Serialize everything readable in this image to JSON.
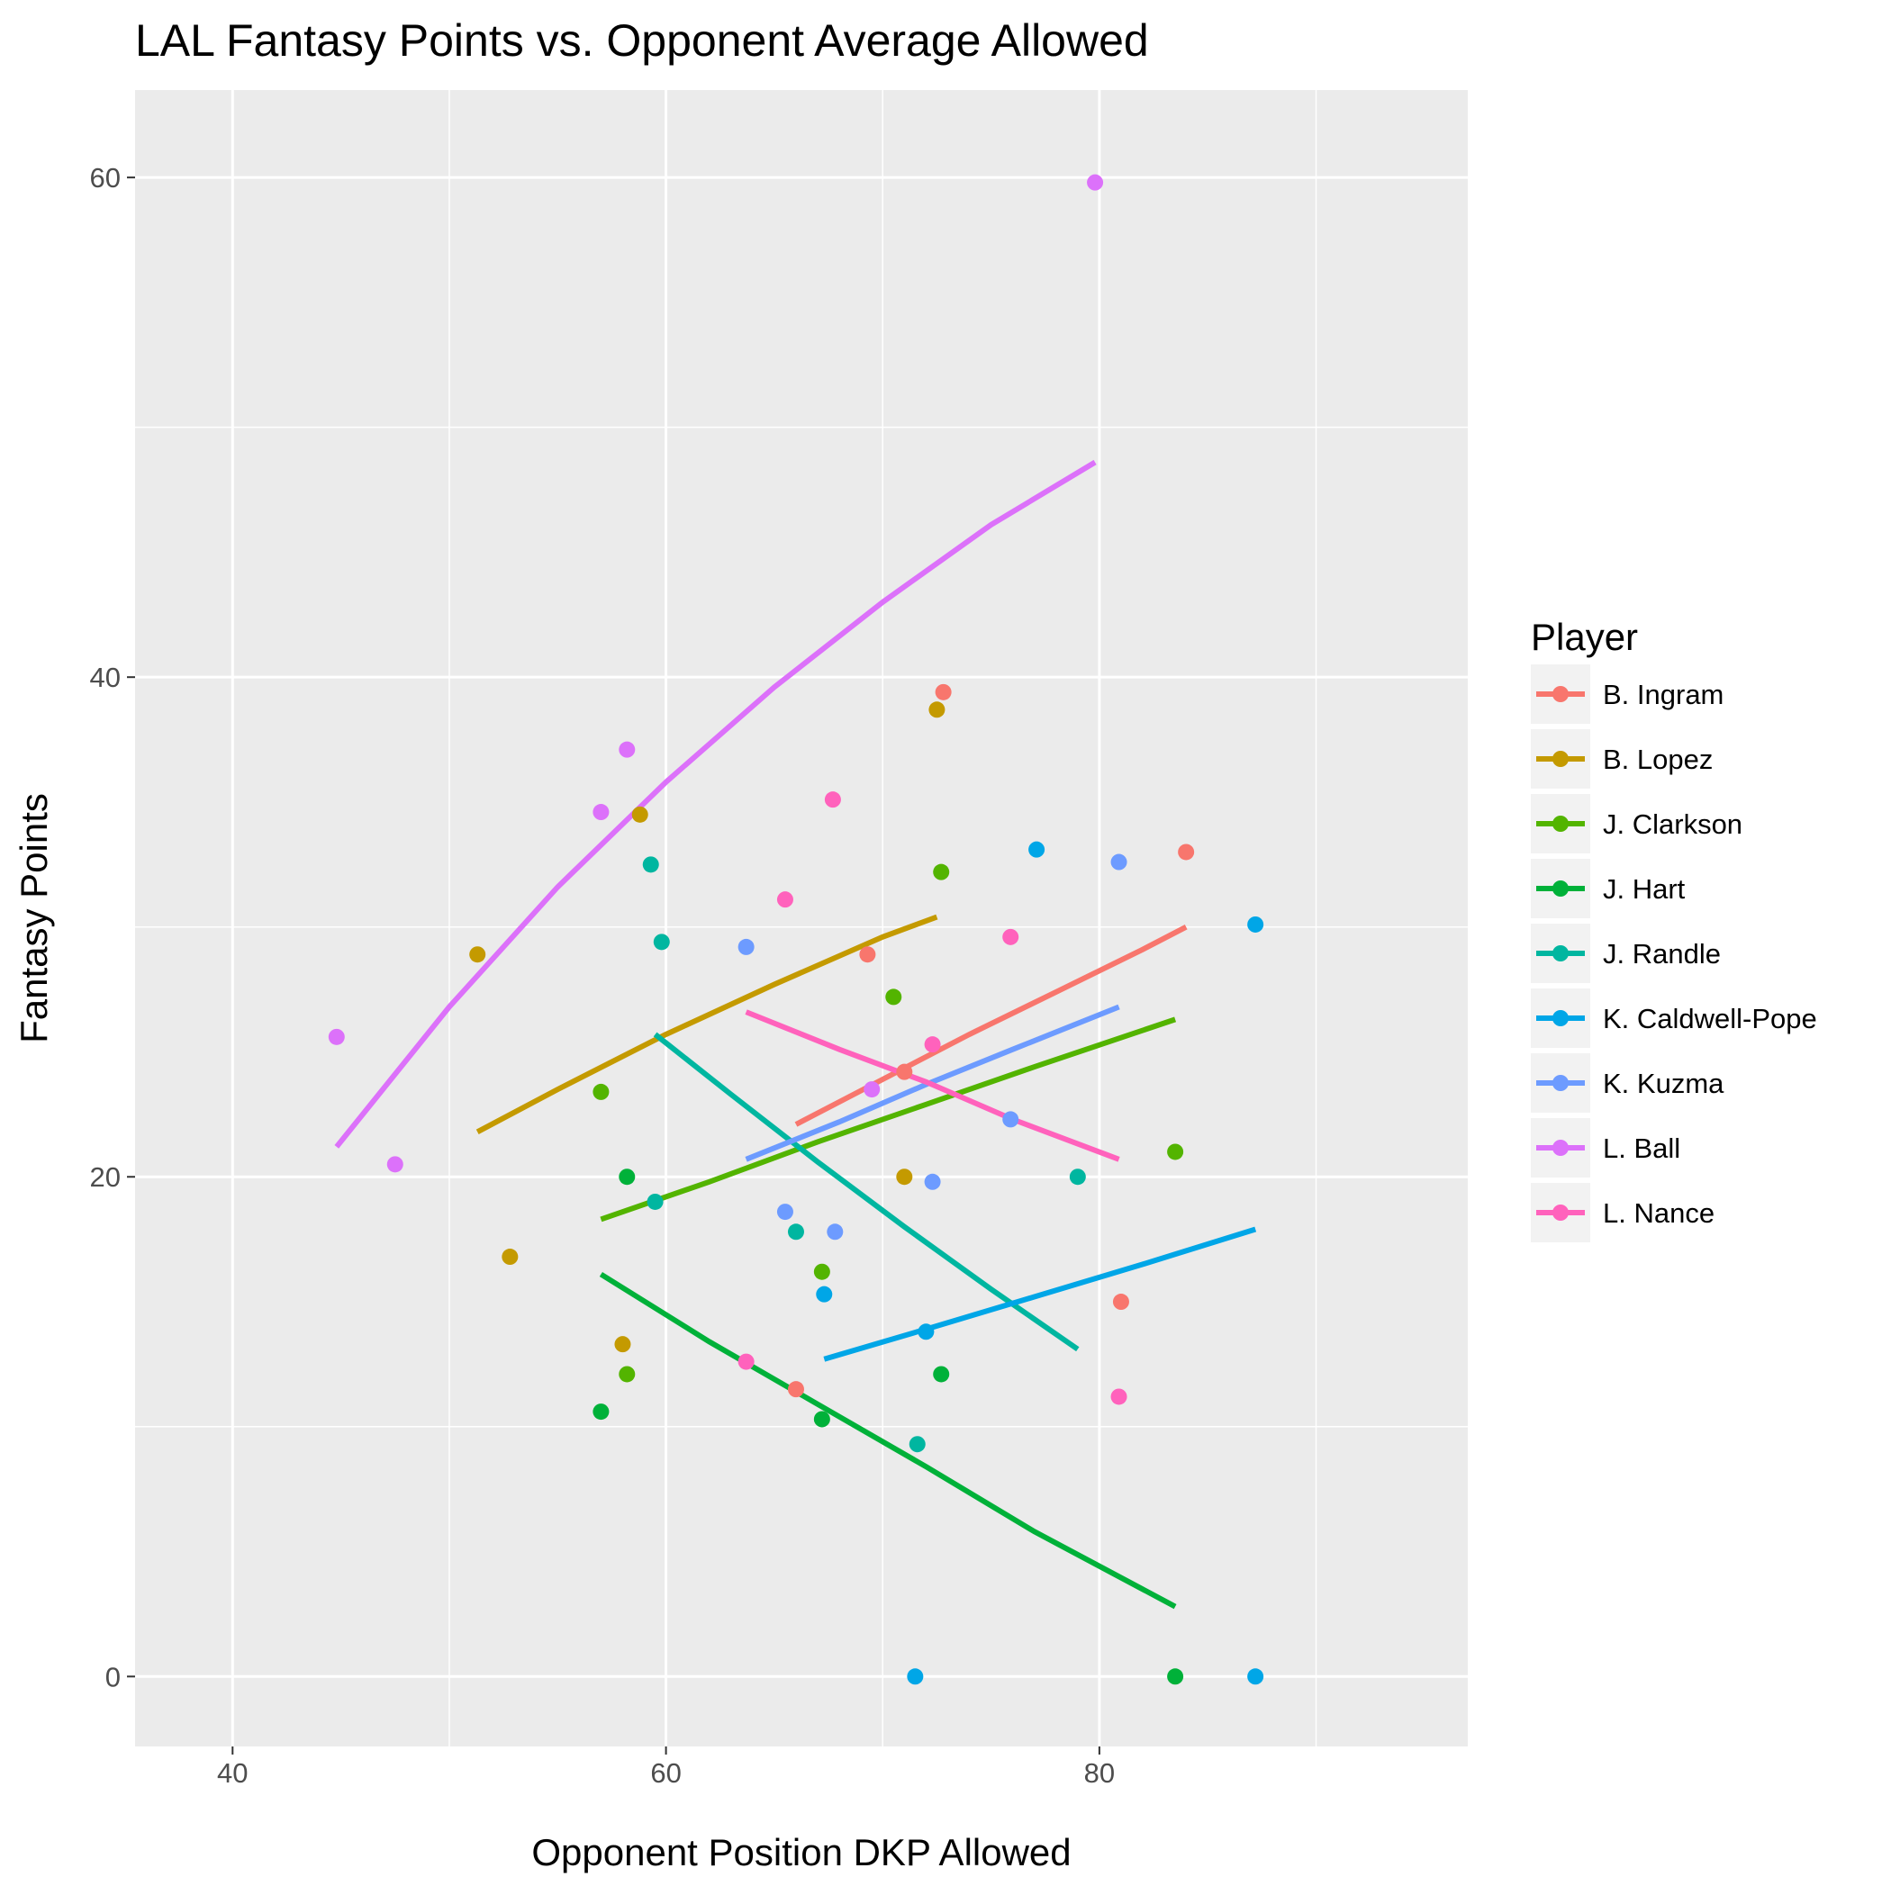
{
  "chart_data": {
    "type": "scatter",
    "title": "LAL Fantasy Points vs. Opponent Average Allowed",
    "xlabel": "Opponent Position DKP Allowed",
    "ylabel": "Fantasy Points",
    "xlim": [
      35.5,
      97
    ],
    "ylim": [
      -2.8,
      63.5
    ],
    "x_ticks": [
      40,
      60,
      80
    ],
    "y_ticks": [
      0,
      20,
      40,
      60
    ],
    "x_minor": [
      50,
      70,
      90
    ],
    "y_minor": [
      10,
      30,
      50
    ],
    "grid": true,
    "legend_title": "Player",
    "legend_position": "right",
    "series": [
      {
        "name": "B. Ingram",
        "color": "#F8766D",
        "points": [
          [
            72.8,
            39.4
          ],
          [
            84,
            33
          ],
          [
            69.3,
            28.9
          ],
          [
            71,
            24.2
          ],
          [
            81,
            15
          ],
          [
            66,
            11.5
          ]
        ],
        "trend": [
          [
            66,
            22.1
          ],
          [
            70,
            23.9
          ],
          [
            74,
            25.7
          ],
          [
            78,
            27.4
          ],
          [
            82,
            29.1
          ],
          [
            84,
            30
          ]
        ]
      },
      {
        "name": "B. Lopez",
        "color": "#C49A00",
        "points": [
          [
            72.5,
            38.7
          ],
          [
            58.8,
            34.5
          ],
          [
            51.3,
            28.9
          ],
          [
            71,
            20
          ],
          [
            52.8,
            16.8
          ],
          [
            58,
            13.3
          ]
        ],
        "trend": [
          [
            51.3,
            21.8
          ],
          [
            55,
            23.5
          ],
          [
            60,
            25.7
          ],
          [
            65,
            27.7
          ],
          [
            70,
            29.6
          ],
          [
            72.5,
            30.4
          ]
        ]
      },
      {
        "name": "J. Clarkson",
        "color": "#53B400",
        "points": [
          [
            72.7,
            32.2
          ],
          [
            70.5,
            27.2
          ],
          [
            57,
            23.4
          ],
          [
            83.5,
            21
          ],
          [
            67.2,
            16.2
          ],
          [
            58.2,
            12.1
          ]
        ],
        "trend": [
          [
            57,
            18.3
          ],
          [
            62,
            19.8
          ],
          [
            67,
            21.4
          ],
          [
            72,
            22.9
          ],
          [
            77,
            24.4
          ],
          [
            83.5,
            26.3
          ]
        ]
      },
      {
        "name": "J. Hart",
        "color": "#00B139",
        "points": [
          [
            58.2,
            20
          ],
          [
            72.7,
            12.1
          ],
          [
            57,
            10.6
          ],
          [
            67.2,
            10.3
          ],
          [
            83.5,
            0
          ]
        ],
        "trend": [
          [
            57,
            16.1
          ],
          [
            62,
            13.4
          ],
          [
            67,
            10.9
          ],
          [
            72,
            8.4
          ],
          [
            77,
            5.8
          ],
          [
            83.5,
            2.8
          ]
        ]
      },
      {
        "name": "J. Randle",
        "color": "#00B6A0",
        "points": [
          [
            59.3,
            32.5
          ],
          [
            59.8,
            29.4
          ],
          [
            59.5,
            19
          ],
          [
            66,
            17.8
          ],
          [
            79,
            20
          ],
          [
            71.6,
            9.3
          ]
        ],
        "trend": [
          [
            59.5,
            25.7
          ],
          [
            63,
            23.3
          ],
          [
            67,
            20.6
          ],
          [
            71,
            18
          ],
          [
            75,
            15.5
          ],
          [
            79,
            13.1
          ]
        ]
      },
      {
        "name": "K. Caldwell-Pope",
        "color": "#00A6E7",
        "points": [
          [
            77.1,
            33.1
          ],
          [
            87.2,
            30.1
          ],
          [
            67.3,
            15.3
          ],
          [
            72,
            13.8
          ],
          [
            71.5,
            0
          ],
          [
            87.2,
            0
          ]
        ],
        "trend": [
          [
            67.3,
            12.7
          ],
          [
            72,
            13.9
          ],
          [
            77,
            15.2
          ],
          [
            82,
            16.5
          ],
          [
            87.2,
            17.9
          ]
        ]
      },
      {
        "name": "K. Kuzma",
        "color": "#6D9BFF",
        "points": [
          [
            63.7,
            29.2
          ],
          [
            80.9,
            32.6
          ],
          [
            75.9,
            22.3
          ],
          [
            72.3,
            19.8
          ],
          [
            65.5,
            18.6
          ],
          [
            67.8,
            17.8
          ]
        ],
        "trend": [
          [
            63.7,
            20.7
          ],
          [
            68,
            22.2
          ],
          [
            72,
            23.7
          ],
          [
            76,
            25.1
          ],
          [
            80.9,
            26.8
          ]
        ]
      },
      {
        "name": "L. Ball",
        "color": "#DC71FA",
        "points": [
          [
            79.8,
            59.8
          ],
          [
            58.2,
            37.1
          ],
          [
            57,
            34.6
          ],
          [
            44.8,
            25.6
          ],
          [
            47.5,
            20.5
          ],
          [
            69.5,
            23.5
          ]
        ],
        "trend": [
          [
            44.8,
            21.2
          ],
          [
            50,
            26.8
          ],
          [
            55,
            31.6
          ],
          [
            60,
            35.8
          ],
          [
            65,
            39.6
          ],
          [
            70,
            43
          ],
          [
            75,
            46.1
          ],
          [
            79.8,
            48.6
          ]
        ]
      },
      {
        "name": "L. Nance",
        "color": "#FF62BC",
        "points": [
          [
            67.7,
            35.1
          ],
          [
            65.5,
            31.1
          ],
          [
            75.9,
            29.6
          ],
          [
            72.3,
            25.3
          ],
          [
            63.7,
            12.6
          ],
          [
            80.9,
            11.2
          ]
        ],
        "trend": [
          [
            63.7,
            26.6
          ],
          [
            68,
            25.1
          ],
          [
            72,
            23.8
          ],
          [
            76,
            22.3
          ],
          [
            80.9,
            20.7
          ]
        ]
      }
    ]
  }
}
